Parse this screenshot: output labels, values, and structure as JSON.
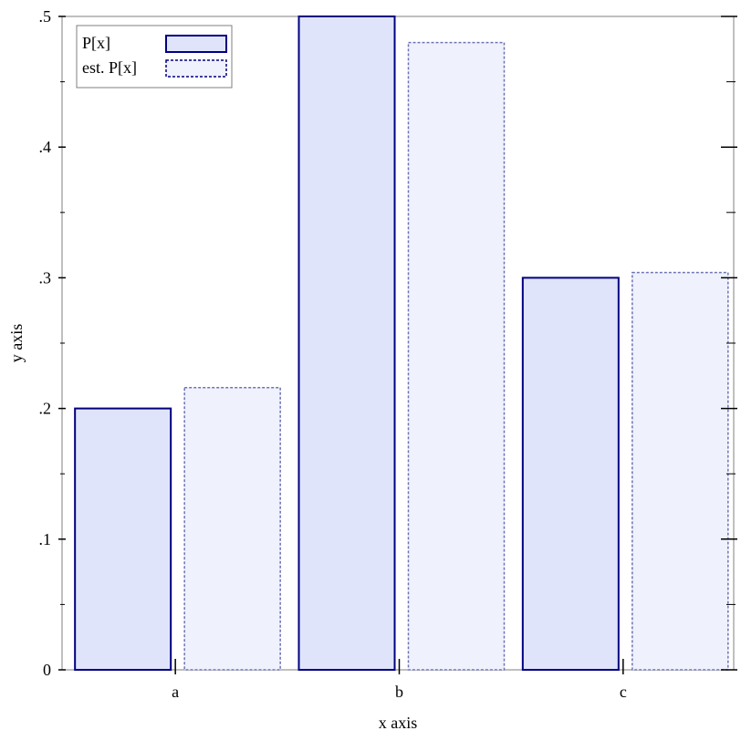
{
  "chart_data": {
    "type": "bar",
    "categories": [
      "a",
      "b",
      "c"
    ],
    "series": [
      {
        "name": "P[x]",
        "values": [
          0.2,
          0.5,
          0.3
        ],
        "fill": "#e0e4fb",
        "stroke": "#000080",
        "style": "solid"
      },
      {
        "name": "est. P[x]",
        "values": [
          0.216,
          0.48,
          0.304
        ],
        "fill": "#eff1fd",
        "stroke": "#6d74b4",
        "style": "dashed"
      }
    ],
    "xlabel": "x axis",
    "ylabel": "y axis",
    "ylim": [
      0,
      0.5
    ],
    "yticks": [
      0,
      0.1,
      0.2,
      0.3,
      0.4,
      0.5
    ],
    "ytick_labels": [
      "0",
      ".1",
      ".2",
      ".3",
      ".4",
      ".5"
    ],
    "grid": false,
    "legend_position": "top-left"
  }
}
